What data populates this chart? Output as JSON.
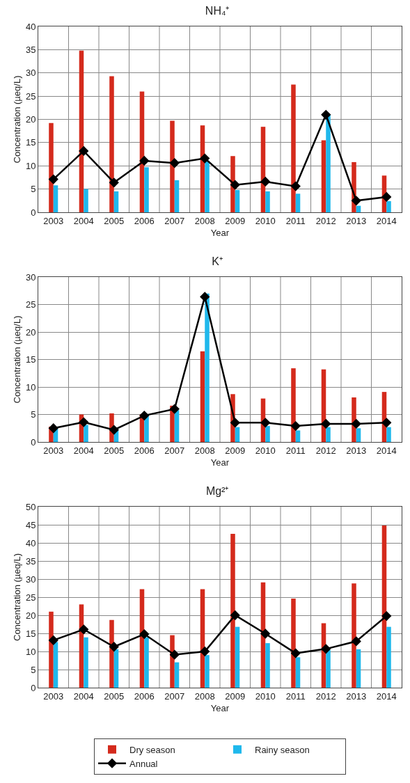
{
  "chart_data": [
    {
      "type": "bar",
      "title": "NH₄⁺",
      "xlabel": "Year",
      "ylabel": "Concentration (µeq/L)",
      "categories": [
        "2003",
        "2004",
        "2005",
        "2006",
        "2007",
        "2008",
        "2009",
        "2010",
        "2011",
        "2012",
        "2013",
        "2014"
      ],
      "ylim": [
        0,
        40
      ],
      "yticks": [
        0,
        5,
        10,
        15,
        20,
        25,
        30,
        35,
        40
      ],
      "grid": true,
      "legend": false,
      "series": [
        {
          "color": "#d42a1c",
          "values": [
            19.2,
            34.8,
            29.3,
            26.0,
            19.7,
            18.7,
            12.1,
            18.4,
            27.5,
            15.5,
            10.8,
            7.9
          ]
        },
        {
          "color": "#1fb8ec",
          "values": [
            5.8,
            5.0,
            4.5,
            9.7,
            6.9,
            11.0,
            4.8,
            4.5,
            4.0,
            21.0,
            1.4,
            2.4
          ]
        },
        {
          "type": "line",
          "color": "#000000",
          "marker": "diamond",
          "values": [
            7.1,
            13.2,
            6.4,
            11.1,
            10.6,
            11.6,
            5.9,
            6.6,
            5.6,
            21.0,
            2.5,
            3.3
          ]
        }
      ]
    },
    {
      "type": "bar",
      "title": "K⁺",
      "xlabel": "Year",
      "ylabel": "Concentration (µeq/L)",
      "categories": [
        "2003",
        "2004",
        "2005",
        "2006",
        "2007",
        "2008",
        "2009",
        "2010",
        "2011",
        "2012",
        "2013",
        "2014"
      ],
      "ylim": [
        0,
        30
      ],
      "yticks": [
        0,
        5,
        10,
        15,
        20,
        25,
        30
      ],
      "grid": true,
      "legend": false,
      "series": [
        {
          "color": "#d42a1c",
          "values": [
            2.8,
            5.0,
            5.2,
            5.0,
            6.6,
            16.5,
            8.7,
            7.9,
            13.4,
            13.2,
            8.1,
            9.1
          ]
        },
        {
          "color": "#1fb8ec",
          "values": [
            2.4,
            3.1,
            2.2,
            4.8,
            5.8,
            27.0,
            2.7,
            2.9,
            2.1,
            2.7,
            2.5,
            2.7
          ]
        },
        {
          "type": "line",
          "color": "#000000",
          "marker": "diamond",
          "values": [
            2.5,
            3.6,
            2.2,
            4.8,
            6.0,
            26.4,
            3.5,
            3.5,
            2.9,
            3.3,
            3.3,
            3.5
          ]
        }
      ]
    },
    {
      "type": "bar",
      "title": "Mg²⁺",
      "xlabel": "Year",
      "ylabel": "Concentration (µeq/L)",
      "categories": [
        "2003",
        "2004",
        "2005",
        "2006",
        "2007",
        "2008",
        "2009",
        "2010",
        "2011",
        "2012",
        "2013",
        "2014"
      ],
      "ylim": [
        0,
        50
      ],
      "yticks": [
        0,
        5,
        10,
        15,
        20,
        25,
        30,
        35,
        40,
        45,
        50
      ],
      "grid": true,
      "legend": "bottom",
      "series": [
        {
          "name": "Dry season",
          "color": "#d42a1c",
          "values": [
            21.0,
            23.0,
            18.7,
            27.2,
            14.5,
            27.2,
            42.5,
            29.1,
            24.6,
            17.8,
            28.8,
            44.8
          ]
        },
        {
          "name": "Rainy season",
          "color": "#1fb8ec",
          "values": [
            12.6,
            13.9,
            10.6,
            13.9,
            7.0,
            9.0,
            16.8,
            12.3,
            8.4,
            10.4,
            10.6,
            16.8
          ]
        },
        {
          "name": "Annual",
          "type": "line",
          "color": "#000000",
          "marker": "diamond",
          "values": [
            13.1,
            16.1,
            11.3,
            14.8,
            9.1,
            10.0,
            20.0,
            14.9,
            9.5,
            10.7,
            12.8,
            19.8
          ]
        }
      ]
    }
  ]
}
